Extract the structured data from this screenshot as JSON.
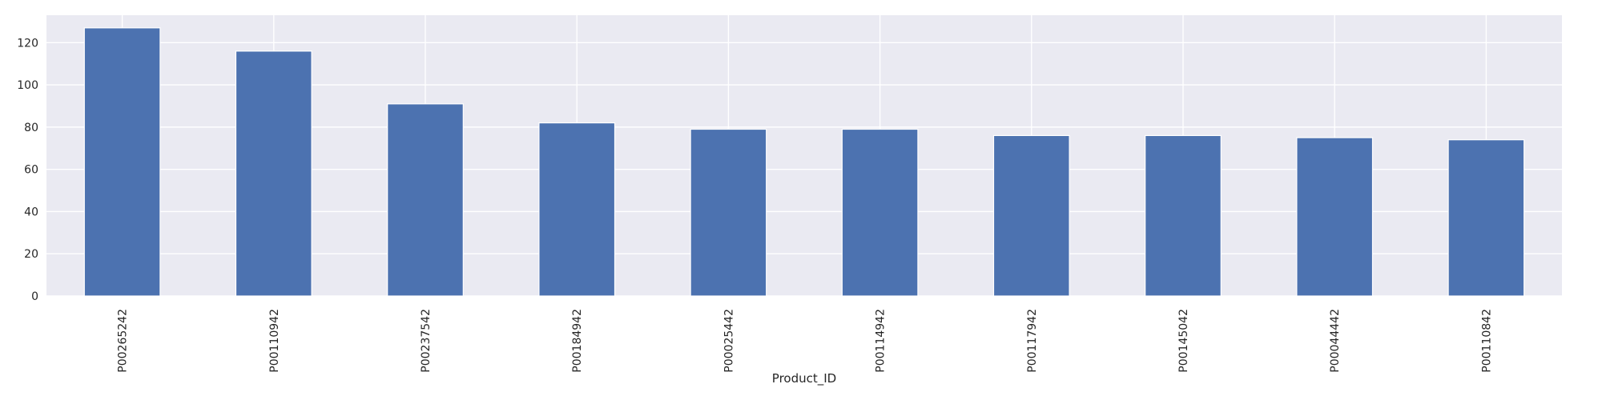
{
  "chart_data": {
    "type": "bar",
    "title": "",
    "xlabel": "Product_ID",
    "ylabel": "",
    "categories": [
      "P00265242",
      "P00110942",
      "P00237542",
      "P00184942",
      "P00025442",
      "P00114942",
      "P00117942",
      "P00145042",
      "P00044442",
      "P00110842"
    ],
    "values": [
      127,
      116,
      91,
      82,
      79,
      79,
      76,
      76,
      75,
      74
    ],
    "ylim": [
      0,
      133
    ],
    "yticks": [
      0,
      20,
      40,
      60,
      80,
      100,
      120
    ],
    "grid": true,
    "legend": "none",
    "colors": {
      "bar": "#4c72b0",
      "background": "#eaeaf2",
      "grid": "#ffffff",
      "text": "#262626"
    }
  }
}
